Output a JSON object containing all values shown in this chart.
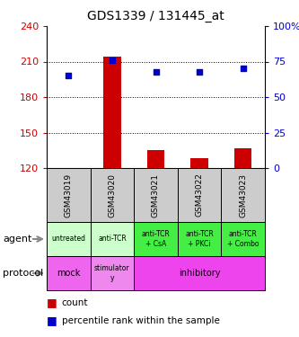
{
  "title": "GDS1339 / 131445_at",
  "samples": [
    "GSM43019",
    "GSM43020",
    "GSM43021",
    "GSM43022",
    "GSM43023"
  ],
  "bar_values": [
    120,
    214,
    135,
    128,
    137
  ],
  "bar_bottom": 120,
  "scatter_values": [
    65,
    76,
    68,
    68,
    70
  ],
  "ylim_left": [
    120,
    240
  ],
  "ylim_right": [
    0,
    100
  ],
  "yticks_left": [
    120,
    150,
    180,
    210,
    240
  ],
  "yticks_right": [
    0,
    25,
    50,
    75,
    100
  ],
  "bar_color": "#cc0000",
  "scatter_color": "#0000cc",
  "agent_labels": [
    "untreated",
    "anti-TCR",
    "anti-TCR\n+ CsA",
    "anti-TCR\n+ PKCi",
    "anti-TCR\n+ Combo"
  ],
  "agent_colors_light": "#ccffcc",
  "agent_colors_dark": "#44ee44",
  "agent_dark_indices": [
    2,
    3,
    4
  ],
  "protocol_mock_color": "#ee66ee",
  "protocol_stim_color": "#ee88ee",
  "protocol_inhib_color": "#ee44ee",
  "sample_bg_color": "#cccccc",
  "legend_count_color": "#cc0000",
  "legend_pct_color": "#0000cc",
  "left_tick_color": "#cc0000",
  "right_tick_color": "#0000cc",
  "title_fontsize": 10,
  "bar_width": 0.4
}
